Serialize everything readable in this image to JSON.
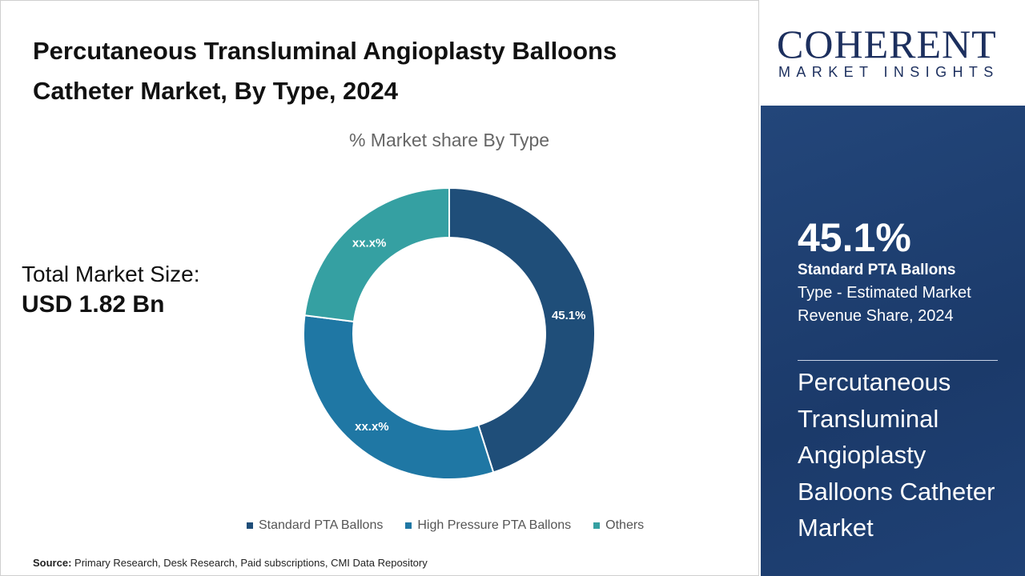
{
  "header": {
    "title_line1": "Percutaneous Transluminal Angioplasty Balloons",
    "title_line2": "Catheter Market, By Type, 2024"
  },
  "total": {
    "label": "Total Market Size:",
    "value": "USD 1.82 Bn"
  },
  "source": {
    "label": "Source:",
    "text": "Primary Research, Desk Research, Paid subscriptions, CMI Data Repository"
  },
  "logo": {
    "brand": "COHERENT",
    "tagline": "MARKET INSIGHTS"
  },
  "panel": {
    "percent": "45.1%",
    "segment": "Standard PTA Ballons",
    "description": "Type - Estimated Market Revenue Share, 2024",
    "market_name": "Percutaneous Transluminal Angioplasty Balloons Catheter Market",
    "bg_color": "#1f4175"
  },
  "chart_data": {
    "type": "pie",
    "donut": true,
    "title": "% Market share By Type",
    "legend_position": "bottom",
    "categories": [
      "Standard PTA Ballons",
      "High Pressure PTA Ballons",
      "Others"
    ],
    "values": [
      45.1,
      31.9,
      23.0
    ],
    "data_labels": [
      "45.1%",
      "xx.x%",
      "xx.x%"
    ],
    "colors": [
      "#1f4e79",
      "#1f77a4",
      "#35a0a2"
    ]
  }
}
